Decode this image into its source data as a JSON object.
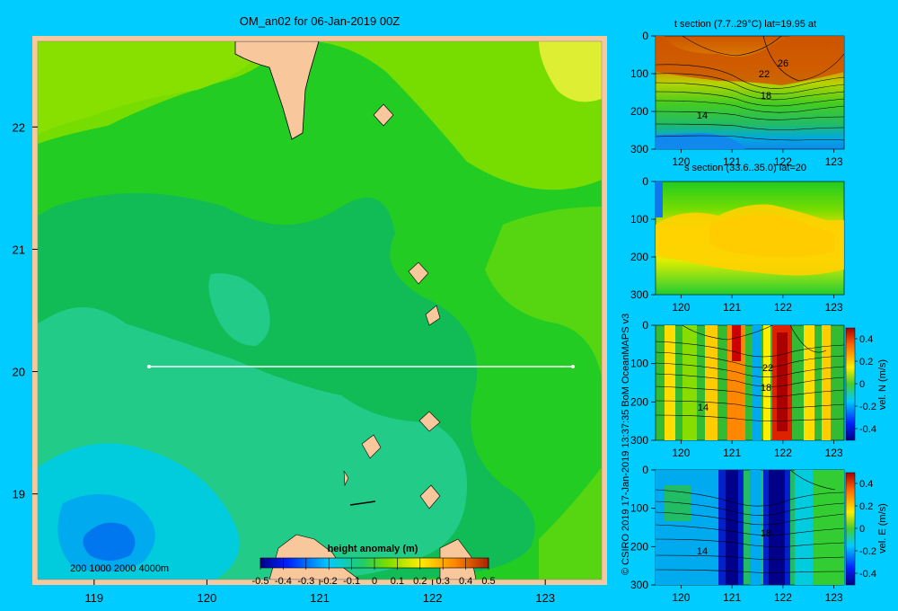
{
  "main": {
    "title": "OM_an02 for 06-Jan-2019 00Z",
    "x_ticks": [
      "119",
      "120",
      "121",
      "122",
      "123"
    ],
    "y_ticks": [
      "22",
      "21",
      "20",
      "19"
    ],
    "depth_legend": "200  1000  2000  4000m",
    "colorbar_title": "height anomaly (m)",
    "colorbar_ticks": [
      "-0.5",
      "-0.4",
      "-0.3",
      "-0.2",
      "-0.1",
      "0",
      "0.1",
      "0.2",
      "0.3",
      "0.4",
      "0.5"
    ],
    "section_line_lat": 20,
    "section_line_lon": [
      119.5,
      123.2
    ]
  },
  "credit": "© CSIRO 2019   17-Jan-2019 13:37:35 BoM OceanMAPS v3",
  "panels": [
    {
      "title": "t section (7.7..29°C) lat=19.95 at",
      "y_ticks": [
        "0",
        "100",
        "200",
        "300"
      ],
      "x_ticks": [
        "120",
        "121",
        "122",
        "123"
      ],
      "contour_labels": [
        "26",
        "22",
        "18",
        "14"
      ]
    },
    {
      "title": "s section (33.6..35.0) lat=20",
      "y_ticks": [
        "0",
        "100",
        "200",
        "300"
      ],
      "x_ticks": [
        "120",
        "121",
        "122",
        "123"
      ],
      "contour_labels": []
    },
    {
      "title": "",
      "y_ticks": [
        "0",
        "100",
        "200",
        "300"
      ],
      "x_ticks": [
        "120",
        "121",
        "122",
        "123"
      ],
      "contour_labels": [
        "22",
        "18",
        "14"
      ],
      "colorbar_label": "vel. N (m/s)",
      "colorbar_ticks": [
        "0.4",
        "0.2",
        "0",
        "-0.2",
        "-0.4"
      ]
    },
    {
      "title": "",
      "y_ticks": [
        "0",
        "100",
        "200",
        "300"
      ],
      "x_ticks": [
        "120",
        "121",
        "122",
        "123"
      ],
      "contour_labels": [
        "18",
        "14"
      ],
      "colorbar_label": "vel. E (m/s)",
      "colorbar_ticks": [
        "0.4",
        "0.2",
        "0",
        "-0.2",
        "-0.4"
      ]
    }
  ],
  "chart_data": [
    {
      "type": "heatmap",
      "title": "OM_an02 for 06-Jan-2019 00Z",
      "x": [
        119,
        120,
        121,
        122,
        123
      ],
      "y": [
        22,
        21,
        20,
        19
      ],
      "xlim": [
        118.5,
        123.5
      ],
      "ylim": [
        18.3,
        22.7
      ],
      "colorbar": {
        "label": "height anomaly (m)",
        "range": [
          -0.5,
          0.5
        ]
      }
    },
    {
      "type": "heatmap",
      "title": "t section (7.7..29°C) lat=19.95 at",
      "xlim": [
        119.5,
        123.2
      ],
      "ylim": [
        300,
        0
      ]
    },
    {
      "type": "heatmap",
      "title": "s section (33.6..35.0) lat=20",
      "xlim": [
        119.5,
        123.2
      ],
      "ylim": [
        300,
        0
      ]
    },
    {
      "type": "heatmap",
      "xlim": [
        119.5,
        123.2
      ],
      "ylim": [
        300,
        0
      ],
      "colorbar": {
        "label": "vel. N (m/s)",
        "range": [
          -0.4,
          0.4
        ]
      }
    },
    {
      "type": "heatmap",
      "xlim": [
        119.5,
        123.2
      ],
      "ylim": [
        300,
        0
      ],
      "colorbar": {
        "label": "vel. E (m/s)",
        "range": [
          -0.4,
          0.4
        ]
      }
    }
  ]
}
